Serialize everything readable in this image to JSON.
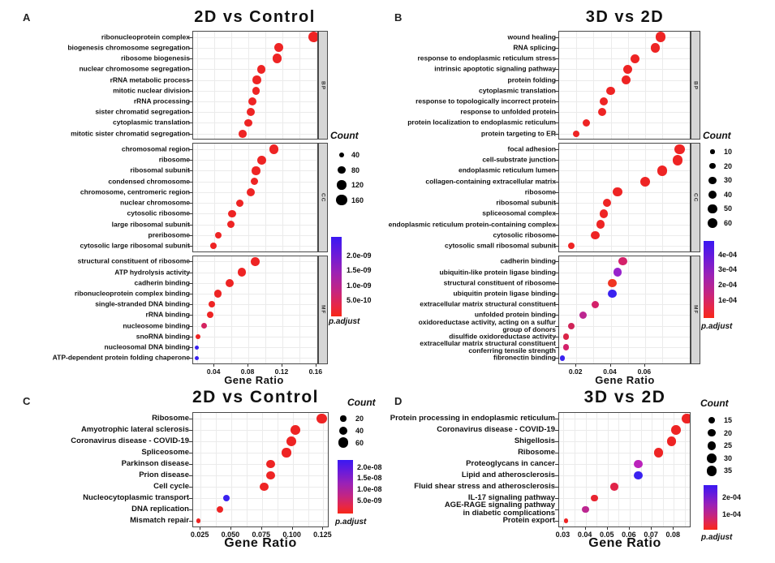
{
  "figure": {
    "panel_letters": [
      "A",
      "B",
      "C",
      "D"
    ]
  },
  "chart_data": [
    {
      "id": "A",
      "type": "dotplot",
      "title": "2D vs Control",
      "xlabel": "Gene Ratio",
      "x_tick_labels": [
        "0.04",
        "0.08",
        "0.12",
        "0.16"
      ],
      "x_tick_values": [
        0.04,
        0.08,
        0.12,
        0.16
      ],
      "xlim": [
        0.015,
        0.163
      ],
      "size_legend": {
        "title": "Count",
        "values": [
          40,
          80,
          120,
          160
        ]
      },
      "color_legend": {
        "title": "p.adjust",
        "ticks": [
          "2.0e-09",
          "1.5e-09",
          "1.0e-09",
          "5.0e-10"
        ]
      },
      "facets": [
        {
          "strip": "BP",
          "rows": [
            {
              "label": "ribonucleoprotein complex",
              "gene_ratio": 0.157,
              "count": 160,
              "color": "#ee2424"
            },
            {
              "label": "biogenesis chromosome segregation",
              "gene_ratio": 0.116,
              "count": 115,
              "color": "#ee2424"
            },
            {
              "label": "ribosome biogenesis",
              "gene_ratio": 0.114,
              "count": 120,
              "color": "#ee2424"
            },
            {
              "label": "nuclear chromosome segregation",
              "gene_ratio": 0.095,
              "count": 100,
              "color": "#ee2424"
            },
            {
              "label": "rRNA metabolic process",
              "gene_ratio": 0.09,
              "count": 100,
              "color": "#ee2424"
            },
            {
              "label": "mitotic nuclear division",
              "gene_ratio": 0.089,
              "count": 90,
              "color": "#ee2424"
            },
            {
              "label": "rRNA processing",
              "gene_ratio": 0.085,
              "count": 95,
              "color": "#ee2424"
            },
            {
              "label": "sister chromatid segregation",
              "gene_ratio": 0.083,
              "count": 90,
              "color": "#ee2424"
            },
            {
              "label": "cytoplasmic translation",
              "gene_ratio": 0.08,
              "count": 90,
              "color": "#ee2424"
            },
            {
              "label": "mitotic sister chromatid segregation",
              "gene_ratio": 0.073,
              "count": 85,
              "color": "#ee2424"
            }
          ]
        },
        {
          "strip": "CC",
          "rows": [
            {
              "label": "chromosomal region",
              "gene_ratio": 0.11,
              "count": 115,
              "color": "#ee2424"
            },
            {
              "label": "ribosome",
              "gene_ratio": 0.096,
              "count": 105,
              "color": "#ee2424"
            },
            {
              "label": "ribosomal subunit",
              "gene_ratio": 0.089,
              "count": 95,
              "color": "#ee2424"
            },
            {
              "label": "condensed chromosome",
              "gene_ratio": 0.087,
              "count": 85,
              "color": "#ee2424"
            },
            {
              "label": "chromosome, centromeric region",
              "gene_ratio": 0.083,
              "count": 90,
              "color": "#ee2424"
            },
            {
              "label": "nuclear chromosome",
              "gene_ratio": 0.07,
              "count": 75,
              "color": "#ee2424"
            },
            {
              "label": "cytosolic ribosome",
              "gene_ratio": 0.061,
              "count": 85,
              "color": "#ee2424"
            },
            {
              "label": "large ribosomal subunit",
              "gene_ratio": 0.059,
              "count": 75,
              "color": "#ee2424"
            },
            {
              "label": "preribosome",
              "gene_ratio": 0.045,
              "count": 60,
              "color": "#ee2424"
            },
            {
              "label": "cytosolic large ribosomal subunit",
              "gene_ratio": 0.039,
              "count": 60,
              "color": "#ee2424"
            }
          ]
        },
        {
          "strip": "MF",
          "rows": [
            {
              "label": "structural constituent of ribosome",
              "gene_ratio": 0.088,
              "count": 105,
              "color": "#ee2424"
            },
            {
              "label": "ATP hydrolysis activity",
              "gene_ratio": 0.072,
              "count": 95,
              "color": "#ee2424"
            },
            {
              "label": "cadherin binding",
              "gene_ratio": 0.058,
              "count": 95,
              "color": "#ee2424"
            },
            {
              "label": "ribonucleoprotein complex binding",
              "gene_ratio": 0.044,
              "count": 75,
              "color": "#ee2424"
            },
            {
              "label": "single-stranded DNA binding",
              "gene_ratio": 0.037,
              "count": 60,
              "color": "#ee2424"
            },
            {
              "label": "rRNA binding",
              "gene_ratio": 0.035,
              "count": 60,
              "color": "#ee2424"
            },
            {
              "label": "nucleosome binding",
              "gene_ratio": 0.028,
              "count": 45,
              "color": "#d42360"
            },
            {
              "label": "snoRNA binding",
              "gene_ratio": 0.021,
              "count": 35,
              "color": "#ee2424"
            },
            {
              "label": "nucleosomal DNA binding",
              "gene_ratio": 0.019,
              "count": 25,
              "color": "#3a22f0"
            },
            {
              "label": "ATP-dependent protein folding chaperone",
              "gene_ratio": 0.019,
              "count": 25,
              "color": "#3a22f0"
            }
          ]
        }
      ]
    },
    {
      "id": "B",
      "type": "dotplot",
      "title": "3D vs 2D",
      "xlabel": "Gene Ratio",
      "x_tick_labels": [
        "0.02",
        "0.04",
        "0.06"
      ],
      "x_tick_values": [
        0.02,
        0.04,
        0.06
      ],
      "xlim": [
        0.01,
        0.087
      ],
      "size_legend": {
        "title": "Count",
        "values": [
          10,
          20,
          30,
          40,
          50,
          60
        ]
      },
      "color_legend": {
        "title": "p.adjust",
        "ticks": [
          "4e-04",
          "3e-04",
          "2e-04",
          "1e-04"
        ]
      },
      "facets": [
        {
          "strip": "BP",
          "rows": [
            {
              "label": "wound healing",
              "gene_ratio": 0.069,
              "count": 55,
              "color": "#ee2424"
            },
            {
              "label": "RNA splicing",
              "gene_ratio": 0.066,
              "count": 50,
              "color": "#ee2424"
            },
            {
              "label": "response to endoplasmic reticulum stress",
              "gene_ratio": 0.054,
              "count": 45,
              "color": "#ee2424"
            },
            {
              "label": "intrinsic apoptotic signaling pathway",
              "gene_ratio": 0.05,
              "count": 45,
              "color": "#ee2424"
            },
            {
              "label": "protein folding",
              "gene_ratio": 0.049,
              "count": 45,
              "color": "#ee2424"
            },
            {
              "label": "cytoplasmic translation",
              "gene_ratio": 0.04,
              "count": 40,
              "color": "#ee2424"
            },
            {
              "label": "response to topologically incorrect protein",
              "gene_ratio": 0.036,
              "count": 40,
              "color": "#ee2424"
            },
            {
              "label": "response to unfolded protein",
              "gene_ratio": 0.035,
              "count": 40,
              "color": "#ee2424"
            },
            {
              "label": "protein localization to endoplasmic reticulum",
              "gene_ratio": 0.026,
              "count": 30,
              "color": "#ee2424"
            },
            {
              "label": "protein targeting to ER",
              "gene_ratio": 0.02,
              "count": 25,
              "color": "#ee2424"
            }
          ]
        },
        {
          "strip": "CC",
          "rows": [
            {
              "label": "focal adhesion",
              "gene_ratio": 0.08,
              "count": 60,
              "color": "#ee2424"
            },
            {
              "label": "cell-substrate junction",
              "gene_ratio": 0.079,
              "count": 60,
              "color": "#ee2424"
            },
            {
              "label": "endoplasmic reticulum lumen",
              "gene_ratio": 0.07,
              "count": 55,
              "color": "#ee2424"
            },
            {
              "label": "collagen-containing extracellular matrix",
              "gene_ratio": 0.06,
              "count": 55,
              "color": "#ee2424"
            },
            {
              "label": "ribosome",
              "gene_ratio": 0.044,
              "count": 45,
              "color": "#ee2424"
            },
            {
              "label": "ribosomal subunit",
              "gene_ratio": 0.038,
              "count": 40,
              "color": "#ee2424"
            },
            {
              "label": "spliceosomal complex",
              "gene_ratio": 0.036,
              "count": 40,
              "color": "#ee2424"
            },
            {
              "label": "endoplasmic reticulum protein-containing complex",
              "gene_ratio": 0.034,
              "count": 40,
              "color": "#ee2424"
            },
            {
              "label": "cytosolic ribosome",
              "gene_ratio": 0.031,
              "count": 40,
              "color": "#ee2424"
            },
            {
              "label": "cytosolic small ribosomal subunit",
              "gene_ratio": 0.017,
              "count": 25,
              "color": "#ee2424"
            }
          ]
        },
        {
          "strip": "MF",
          "rows": [
            {
              "label": "cadherin binding",
              "gene_ratio": 0.047,
              "count": 40,
              "color": "#d4216a"
            },
            {
              "label": "ubiquitin-like protein ligase binding",
              "gene_ratio": 0.044,
              "count": 40,
              "color": "#9822cc"
            },
            {
              "label": "structural constituent of ribosome",
              "gene_ratio": 0.041,
              "count": 40,
              "color": "#f03522"
            },
            {
              "label": "ubiquitin protein ligase binding",
              "gene_ratio": 0.041,
              "count": 40,
              "color": "#3a22f0"
            },
            {
              "label": "extracellular matrix structural constituent",
              "gene_ratio": 0.031,
              "count": 30,
              "color": "#d4216a"
            },
            {
              "label": "unfolded protein binding",
              "gene_ratio": 0.024,
              "count": 30,
              "color": "#bc2690"
            },
            {
              "label": "oxidoreductase activity, acting on a sulfur\ngroup of donors",
              "gene_ratio": 0.017,
              "count": 25,
              "color": "#d02458"
            },
            {
              "label": "disulfide oxidoreductase activity",
              "gene_ratio": 0.014,
              "count": 20,
              "color": "#da2446"
            },
            {
              "label": "extracellular matrix structural constituent\nconferring tensile strength",
              "gene_ratio": 0.014,
              "count": 20,
              "color": "#d4216a"
            },
            {
              "label": "fibronectin binding",
              "gene_ratio": 0.012,
              "count": 15,
              "color": "#3a22f0"
            }
          ]
        }
      ]
    },
    {
      "id": "C",
      "type": "dotplot",
      "title": "2D vs Control",
      "xlabel": "Gene Ratio",
      "x_tick_labels": [
        "0.025",
        "0.050",
        "0.075",
        "0.100",
        "0.125"
      ],
      "x_tick_values": [
        0.025,
        0.05,
        0.075,
        0.1,
        0.125
      ],
      "xlim": [
        0.019,
        0.13
      ],
      "size_legend": {
        "title": "Count",
        "values": [
          20,
          40,
          60
        ]
      },
      "color_legend": {
        "title": "p.adjust",
        "ticks": [
          "2.0e-08",
          "1.5e-08",
          "1.0e-08",
          "5.0e-09"
        ]
      },
      "facets": [
        {
          "strip": null,
          "rows": [
            {
              "label": "Ribosome",
              "gene_ratio": 0.124,
              "count": 65,
              "color": "#ee2424"
            },
            {
              "label": "Amyotrophic lateral sclerosis",
              "gene_ratio": 0.102,
              "count": 55,
              "color": "#ee2424"
            },
            {
              "label": "Coronavirus disease - COVID-19",
              "gene_ratio": 0.099,
              "count": 55,
              "color": "#ee2424"
            },
            {
              "label": "Spliceosome",
              "gene_ratio": 0.095,
              "count": 50,
              "color": "#ee2424"
            },
            {
              "label": "Parkinson disease",
              "gene_ratio": 0.082,
              "count": 45,
              "color": "#ee2424"
            },
            {
              "label": "Prion disease",
              "gene_ratio": 0.082,
              "count": 45,
              "color": "#ee2424"
            },
            {
              "label": "Cell cycle",
              "gene_ratio": 0.077,
              "count": 45,
              "color": "#ee2424"
            },
            {
              "label": "Nucleocytoplasmic transport",
              "gene_ratio": 0.046,
              "count": 25,
              "color": "#3a22f0"
            },
            {
              "label": "DNA replication",
              "gene_ratio": 0.041,
              "count": 25,
              "color": "#ee2424"
            },
            {
              "label": "Mismatch repair",
              "gene_ratio": 0.023,
              "count": 10,
              "color": "#ee2424"
            }
          ]
        }
      ]
    },
    {
      "id": "D",
      "type": "dotplot",
      "title": "3D vs 2D",
      "xlabel": "Gene Ratio",
      "x_tick_labels": [
        "0.03",
        "0.04",
        "0.05",
        "0.06",
        "0.07",
        "0.08"
      ],
      "x_tick_values": [
        0.03,
        0.04,
        0.05,
        0.06,
        0.07,
        0.08
      ],
      "xlim": [
        0.028,
        0.088
      ],
      "size_legend": {
        "title": "Count",
        "values": [
          15,
          20,
          25,
          30,
          35
        ]
      },
      "color_legend": {
        "title": "p.adjust",
        "ticks": [
          "2e-04",
          "1e-04"
        ]
      },
      "facets": [
        {
          "strip": null,
          "rows": [
            {
              "label": "Protein processing in endoplasmic reticulum",
              "gene_ratio": 0.086,
              "count": 35,
              "color": "#ee2424"
            },
            {
              "label": "Coronavirus disease - COVID-19",
              "gene_ratio": 0.081,
              "count": 30,
              "color": "#ee2424"
            },
            {
              "label": "Shigellosis",
              "gene_ratio": 0.079,
              "count": 30,
              "color": "#ee2424"
            },
            {
              "label": "Ribosome",
              "gene_ratio": 0.073,
              "count": 27,
              "color": "#ee2424"
            },
            {
              "label": "Proteoglycans in cancer",
              "gene_ratio": 0.064,
              "count": 25,
              "color": "#bb22bb"
            },
            {
              "label": "Lipid and atherosclerosis",
              "gene_ratio": 0.064,
              "count": 25,
              "color": "#3a22f0"
            },
            {
              "label": "Fluid shear stress and atherosclerosis",
              "gene_ratio": 0.053,
              "count": 20,
              "color": "#e02348"
            },
            {
              "label": "IL-17 signaling pathway",
              "gene_ratio": 0.044,
              "count": 15,
              "color": "#e82430"
            },
            {
              "label": "AGE-RAGE signaling pathway\nin diabetic complications",
              "gene_ratio": 0.04,
              "count": 15,
              "color": "#bc2690"
            },
            {
              "label": "Protein export",
              "gene_ratio": 0.031,
              "count": 6,
              "color": "#ee2424"
            }
          ]
        }
      ]
    }
  ]
}
